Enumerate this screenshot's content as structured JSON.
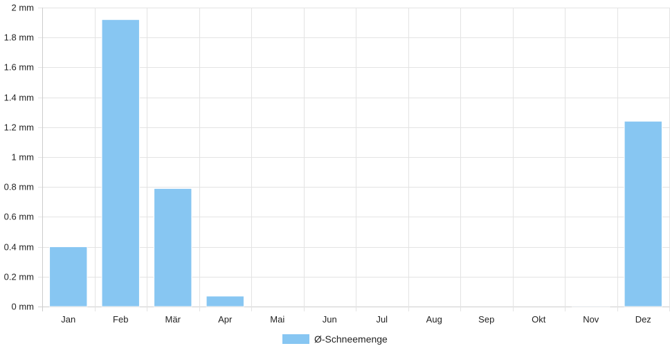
{
  "chart_data": {
    "type": "bar",
    "categories": [
      "Jan",
      "Feb",
      "Mär",
      "Apr",
      "Mai",
      "Jun",
      "Jul",
      "Aug",
      "Sep",
      "Okt",
      "Nov",
      "Dez"
    ],
    "series": [
      {
        "name": "Ø-Schneemenge",
        "values": [
          0.4,
          1.92,
          0.79,
          0.07,
          0,
          0,
          0,
          0,
          0,
          0,
          0.005,
          1.24
        ],
        "color": "#87c6f2"
      }
    ],
    "y_unit": "mm",
    "ylim": [
      0,
      2
    ],
    "y_ticks": [
      {
        "value": 0,
        "label": "0 mm"
      },
      {
        "value": 0.2,
        "label": "0.2 mm"
      },
      {
        "value": 0.4,
        "label": "0.4 mm"
      },
      {
        "value": 0.6,
        "label": "0.6 mm"
      },
      {
        "value": 0.8,
        "label": "0.8 mm"
      },
      {
        "value": 1,
        "label": "1 mm"
      },
      {
        "value": 1.2,
        "label": "1.2 mm"
      },
      {
        "value": 1.4,
        "label": "1.4 mm"
      },
      {
        "value": 1.6,
        "label": "1.6 mm"
      },
      {
        "value": 1.8,
        "label": "1.8 mm"
      },
      {
        "value": 2,
        "label": "2 mm"
      }
    ],
    "grid": true,
    "legend_position": "bottom-center",
    "grid_color": "#e3e3e3",
    "axis_color": "#cccccc"
  }
}
